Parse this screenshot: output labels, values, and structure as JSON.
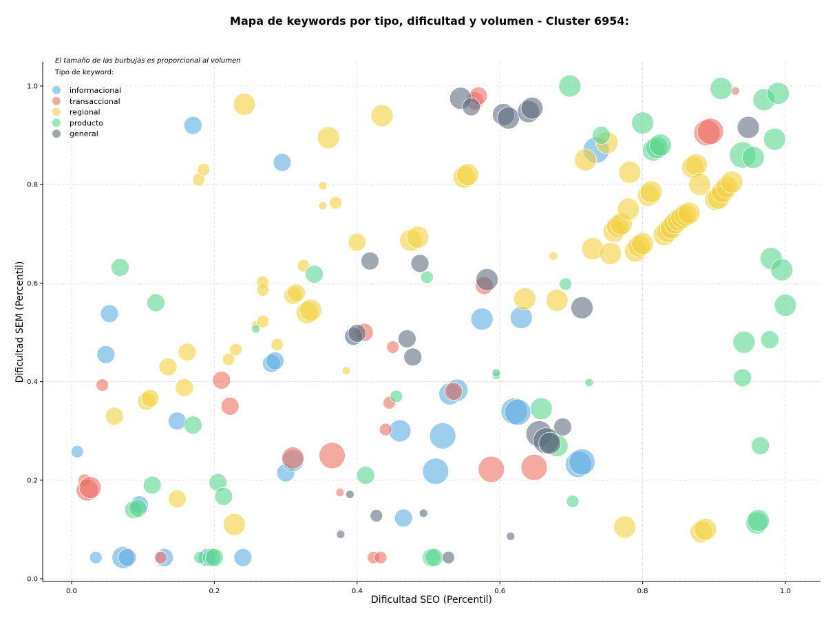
{
  "chart_data": {
    "type": "scatter",
    "title": "Mapa de keywords por tipo, dificultad y volumen - Cluster 6954:",
    "xlabel": "Dificultad SEO (Percentil)",
    "ylabel": "Dificultad SEM (Percentil)",
    "xlim": [
      -0.04,
      1.05
    ],
    "ylim": [
      -0.01,
      1.05
    ],
    "xticks": [
      "0.0",
      "0.2",
      "0.4",
      "0.6",
      "0.8",
      "1.0"
    ],
    "yticks": [
      "0.0",
      "0.2",
      "0.4",
      "0.6",
      "0.8",
      "1.0"
    ],
    "grid": true,
    "size_note": "El tamaño de las burbujas es proporcional al volumen",
    "legend_title": "Tipo de keyword:",
    "legend_position": "top-left",
    "series": [
      {
        "name": "informacional",
        "color": "#5DADE2",
        "points": [
          [
            0.17,
            0.92,
            3
          ],
          [
            0.295,
            0.845,
            3
          ],
          [
            0.053,
            0.538,
            3
          ],
          [
            0.048,
            0.455,
            3
          ],
          [
            0.008,
            0.258,
            2
          ],
          [
            0.148,
            0.32,
            3
          ],
          [
            0.095,
            0.15,
            3
          ],
          [
            0.034,
            0.043,
            2
          ],
          [
            0.072,
            0.043,
            4
          ],
          [
            0.078,
            0.043,
            3
          ],
          [
            0.13,
            0.043,
            3
          ],
          [
            0.19,
            0.043,
            3
          ],
          [
            0.24,
            0.043,
            3
          ],
          [
            0.28,
            0.437,
            3
          ],
          [
            0.285,
            0.442,
            3
          ],
          [
            0.3,
            0.215,
            3
          ],
          [
            0.31,
            0.24,
            4
          ],
          [
            0.46,
            0.3,
            4
          ],
          [
            0.465,
            0.123,
            3
          ],
          [
            0.51,
            0.218,
            5
          ],
          [
            0.52,
            0.29,
            5
          ],
          [
            0.53,
            0.375,
            4
          ],
          [
            0.54,
            0.383,
            4
          ],
          [
            0.575,
            0.527,
            4
          ],
          [
            0.62,
            0.34,
            5
          ],
          [
            0.625,
            0.338,
            5
          ],
          [
            0.63,
            0.53,
            4
          ],
          [
            0.71,
            0.232,
            5
          ],
          [
            0.715,
            0.237,
            5
          ],
          [
            0.735,
            0.87,
            5
          ]
        ]
      },
      {
        "name": "transaccional",
        "color": "#EC7063",
        "points": [
          [
            0.018,
            0.2,
            2
          ],
          [
            0.022,
            0.18,
            4
          ],
          [
            0.026,
            0.185,
            4
          ],
          [
            0.043,
            0.393,
            2
          ],
          [
            0.125,
            0.043,
            2
          ],
          [
            0.21,
            0.403,
            3
          ],
          [
            0.222,
            0.35,
            3
          ],
          [
            0.31,
            0.245,
            4
          ],
          [
            0.365,
            0.25,
            5
          ],
          [
            0.376,
            0.175,
            1
          ],
          [
            0.41,
            0.5,
            3
          ],
          [
            0.423,
            0.043,
            2
          ],
          [
            0.433,
            0.043,
            2
          ],
          [
            0.44,
            0.303,
            2
          ],
          [
            0.445,
            0.357,
            2
          ],
          [
            0.45,
            0.47,
            2
          ],
          [
            0.535,
            0.38,
            3
          ],
          [
            0.565,
            0.97,
            3
          ],
          [
            0.57,
            0.98,
            3
          ],
          [
            0.578,
            0.595,
            3
          ],
          [
            0.588,
            0.222,
            5
          ],
          [
            0.648,
            0.226,
            5
          ],
          [
            0.89,
            0.905,
            5
          ],
          [
            0.895,
            0.908,
            5
          ],
          [
            0.93,
            0.99,
            1
          ]
        ]
      },
      {
        "name": "regional",
        "color": "#F4D03F",
        "points": [
          [
            0.242,
            0.963,
            4
          ],
          [
            0.178,
            0.81,
            2
          ],
          [
            0.185,
            0.83,
            2
          ],
          [
            0.36,
            0.895,
            4
          ],
          [
            0.435,
            0.94,
            4
          ],
          [
            0.352,
            0.797,
            1
          ],
          [
            0.352,
            0.757,
            1
          ],
          [
            0.37,
            0.763,
            2
          ],
          [
            0.4,
            0.683,
            3
          ],
          [
            0.475,
            0.687,
            4
          ],
          [
            0.485,
            0.693,
            4
          ],
          [
            0.325,
            0.635,
            2
          ],
          [
            0.268,
            0.602,
            2
          ],
          [
            0.268,
            0.586,
            2
          ],
          [
            0.31,
            0.575,
            3
          ],
          [
            0.315,
            0.58,
            3
          ],
          [
            0.33,
            0.54,
            4
          ],
          [
            0.335,
            0.545,
            4
          ],
          [
            0.258,
            0.515,
            1
          ],
          [
            0.268,
            0.522,
            2
          ],
          [
            0.288,
            0.475,
            2
          ],
          [
            0.23,
            0.465,
            2
          ],
          [
            0.22,
            0.445,
            2
          ],
          [
            0.162,
            0.46,
            3
          ],
          [
            0.135,
            0.43,
            3
          ],
          [
            0.158,
            0.388,
            3
          ],
          [
            0.105,
            0.36,
            3
          ],
          [
            0.11,
            0.366,
            3
          ],
          [
            0.06,
            0.33,
            3
          ],
          [
            0.385,
            0.422,
            1
          ],
          [
            0.148,
            0.162,
            3
          ],
          [
            0.228,
            0.11,
            4
          ],
          [
            0.55,
            0.815,
            4
          ],
          [
            0.555,
            0.82,
            4
          ],
          [
            0.635,
            0.568,
            4
          ],
          [
            0.675,
            0.655,
            1
          ],
          [
            0.68,
            0.565,
            4
          ],
          [
            0.72,
            0.85,
            4
          ],
          [
            0.73,
            0.67,
            4
          ],
          [
            0.75,
            0.885,
            4
          ],
          [
            0.755,
            0.66,
            4
          ],
          [
            0.76,
            0.705,
            4
          ],
          [
            0.765,
            0.715,
            4
          ],
          [
            0.77,
            0.72,
            4
          ],
          [
            0.775,
            0.105,
            4
          ],
          [
            0.78,
            0.75,
            4
          ],
          [
            0.782,
            0.825,
            4
          ],
          [
            0.79,
            0.665,
            4
          ],
          [
            0.795,
            0.675,
            4
          ],
          [
            0.8,
            0.68,
            4
          ],
          [
            0.808,
            0.778,
            4
          ],
          [
            0.812,
            0.785,
            4
          ],
          [
            0.83,
            0.698,
            4
          ],
          [
            0.835,
            0.705,
            4
          ],
          [
            0.84,
            0.712,
            4
          ],
          [
            0.845,
            0.722,
            4
          ],
          [
            0.85,
            0.728,
            4
          ],
          [
            0.855,
            0.733,
            4
          ],
          [
            0.86,
            0.738,
            4
          ],
          [
            0.865,
            0.742,
            4
          ],
          [
            0.87,
            0.835,
            4
          ],
          [
            0.875,
            0.84,
            4
          ],
          [
            0.88,
            0.8,
            4
          ],
          [
            0.882,
            0.095,
            4
          ],
          [
            0.888,
            0.1,
            4
          ],
          [
            0.902,
            0.77,
            4
          ],
          [
            0.906,
            0.772,
            4
          ],
          [
            0.912,
            0.785,
            4
          ],
          [
            0.918,
            0.795,
            4
          ],
          [
            0.925,
            0.805,
            4
          ]
        ]
      },
      {
        "name": "producto",
        "color": "#58D68D",
        "points": [
          [
            0.068,
            0.632,
            3
          ],
          [
            0.118,
            0.56,
            3
          ],
          [
            0.17,
            0.312,
            3
          ],
          [
            0.113,
            0.19,
            3
          ],
          [
            0.087,
            0.14,
            3
          ],
          [
            0.093,
            0.143,
            3
          ],
          [
            0.18,
            0.043,
            2
          ],
          [
            0.196,
            0.043,
            3
          ],
          [
            0.2,
            0.043,
            3
          ],
          [
            0.205,
            0.195,
            3
          ],
          [
            0.213,
            0.167,
            3
          ],
          [
            0.258,
            0.507,
            1
          ],
          [
            0.34,
            0.618,
            3
          ],
          [
            0.412,
            0.21,
            3
          ],
          [
            0.455,
            0.37,
            2
          ],
          [
            0.498,
            0.612,
            2
          ],
          [
            0.504,
            0.043,
            3
          ],
          [
            0.508,
            0.043,
            3
          ],
          [
            0.595,
            0.413,
            1
          ],
          [
            0.595,
            0.418,
            1
          ],
          [
            0.658,
            0.345,
            4
          ],
          [
            0.67,
            0.28,
            4
          ],
          [
            0.68,
            0.27,
            4
          ],
          [
            0.692,
            0.598,
            2
          ],
          [
            0.698,
            1.0,
            4
          ],
          [
            0.702,
            0.157,
            2
          ],
          [
            0.725,
            0.398,
            1
          ],
          [
            0.742,
            0.9,
            3
          ],
          [
            0.8,
            0.925,
            4
          ],
          [
            0.815,
            0.87,
            4
          ],
          [
            0.82,
            0.875,
            4
          ],
          [
            0.825,
            0.88,
            4
          ],
          [
            0.91,
            0.995,
            4
          ],
          [
            0.94,
            0.86,
            5
          ],
          [
            0.942,
            0.48,
            4
          ],
          [
            0.94,
            0.408,
            3
          ],
          [
            0.955,
            0.855,
            4
          ],
          [
            0.96,
            0.113,
            4
          ],
          [
            0.962,
            0.118,
            4
          ],
          [
            0.965,
            0.27,
            3
          ],
          [
            0.97,
            0.972,
            4
          ],
          [
            0.978,
            0.485,
            3
          ],
          [
            0.98,
            0.65,
            4
          ],
          [
            0.985,
            0.892,
            4
          ],
          [
            0.99,
            0.985,
            4
          ],
          [
            0.995,
            0.627,
            4
          ],
          [
            1.0,
            0.555,
            4
          ]
        ]
      },
      {
        "name": "general",
        "color": "#5D6D7E",
        "points": [
          [
            0.377,
            0.09,
            1
          ],
          [
            0.39,
            0.171,
            1
          ],
          [
            0.395,
            0.492,
            3
          ],
          [
            0.4,
            0.498,
            3
          ],
          [
            0.418,
            0.645,
            3
          ],
          [
            0.427,
            0.128,
            2
          ],
          [
            0.47,
            0.487,
            3
          ],
          [
            0.478,
            0.45,
            3
          ],
          [
            0.488,
            0.64,
            3
          ],
          [
            0.493,
            0.133,
            1
          ],
          [
            0.528,
            0.043,
            2
          ],
          [
            0.545,
            0.975,
            4
          ],
          [
            0.56,
            0.958,
            3
          ],
          [
            0.582,
            0.607,
            4
          ],
          [
            0.605,
            0.942,
            4
          ],
          [
            0.612,
            0.935,
            4
          ],
          [
            0.615,
            0.086,
            1
          ],
          [
            0.64,
            0.948,
            4
          ],
          [
            0.645,
            0.955,
            4
          ],
          [
            0.655,
            0.294,
            5
          ],
          [
            0.665,
            0.28,
            5
          ],
          [
            0.67,
            0.275,
            4
          ],
          [
            0.688,
            0.308,
            3
          ],
          [
            0.715,
            0.55,
            4
          ],
          [
            0.948,
            0.916,
            4
          ]
        ]
      }
    ]
  }
}
